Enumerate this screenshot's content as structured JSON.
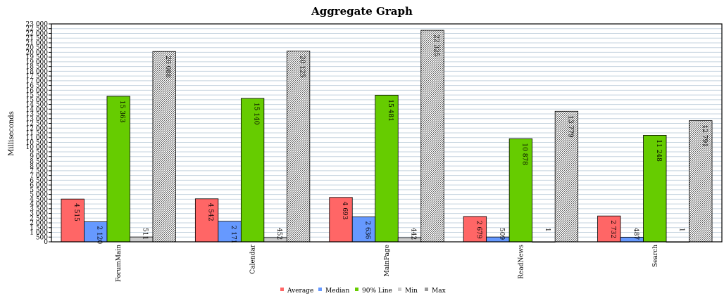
{
  "chart_data": {
    "type": "bar",
    "title": "Aggregate Graph",
    "xlabel": "",
    "ylabel": "Milliseconds",
    "ylim": [
      0,
      23000
    ],
    "ytick_step": 500,
    "grid": true,
    "legend_position": "bottom",
    "categories": [
      "ForumMain",
      "Calendar",
      "MainPage",
      "ReadNews",
      "Search"
    ],
    "series": [
      {
        "name": "Average",
        "color": "#ff6666",
        "values": [
          4515,
          4542,
          4693,
          2679,
          2732
        ],
        "labels": [
          "4 515",
          "4 542",
          "4 693",
          "2 679",
          "2 732"
        ]
      },
      {
        "name": "Median",
        "color": "#6699ff",
        "values": [
          2120,
          2171,
          2636,
          509,
          487
        ],
        "labels": [
          "2 120",
          "2 171",
          "2 636",
          "509",
          "487"
        ]
      },
      {
        "name": "90% Line",
        "color": "#66cc00",
        "values": [
          15363,
          15140,
          15481,
          10878,
          11248
        ],
        "labels": [
          "15 363",
          "15 140",
          "15 481",
          "10 878",
          "11 248"
        ]
      },
      {
        "name": "Min",
        "color": "#cccccc",
        "values": [
          511,
          452,
          442,
          1,
          1
        ],
        "labels": [
          "511",
          "452",
          "442",
          "1",
          "1"
        ]
      },
      {
        "name": "Max",
        "color": "#999999",
        "values": [
          20088,
          20125,
          22325,
          13779,
          12791
        ],
        "labels": [
          "20 088",
          "20 125",
          "22 325",
          "13 779",
          "12 791"
        ]
      }
    ],
    "ytick_labels": [
      "0",
      "500",
      "1 000",
      "1 500",
      "2 000",
      "2 500",
      "3 000",
      "3 500",
      "4 000",
      "4 500",
      "5 000",
      "5 500",
      "6 000",
      "6 500",
      "7 000",
      "7 500",
      "8 000",
      "8 500",
      "9 000",
      "9 500",
      "10 000",
      "10 500",
      "11 000",
      "11 500",
      "12 000",
      "12 500",
      "13 000",
      "13 500",
      "14 000",
      "14 500",
      "15 000",
      "15 500",
      "16 000",
      "16 500",
      "17 000",
      "17 500",
      "18 000",
      "18 500",
      "19 000",
      "19 500",
      "20 000",
      "20 500",
      "21 000",
      "21 500",
      "22 000",
      "22 500",
      "23 000"
    ]
  }
}
